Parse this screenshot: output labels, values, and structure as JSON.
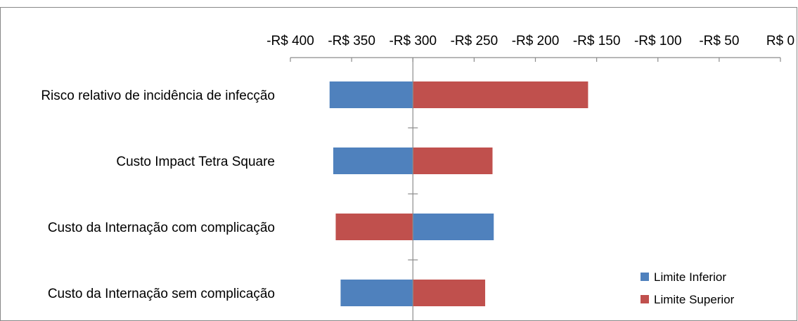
{
  "chart_data": {
    "type": "bar",
    "orientation": "horizontal",
    "subtype": "tornado",
    "baseline": -300,
    "xlim": [
      -400,
      0
    ],
    "x_ticks": [
      -400,
      -350,
      -300,
      -250,
      -200,
      -150,
      -100,
      -50,
      0
    ],
    "x_tick_labels": [
      "-R$ 400",
      "-R$ 350",
      "-R$ 300",
      "-R$ 250",
      "-R$ 200",
      "-R$ 150",
      "-R$ 100",
      "-R$ 50",
      "R$ 0"
    ],
    "x_axis_position": "top",
    "grid": false,
    "legend_position": "bottom-right",
    "categories": [
      "Risco relativo de incidência de infecção",
      "Custo Impact Tetra Square",
      "Custo da Internação com complicação",
      "Custo da Internação sem complicação"
    ],
    "series": [
      {
        "name": "Limite Inferior",
        "color": "#4F81BD",
        "values": [
          -368,
          -365,
          -234,
          -359
        ]
      },
      {
        "name": "Limite Superior",
        "color": "#C0504D",
        "values": [
          -157,
          -235,
          -363,
          -241
        ]
      }
    ]
  }
}
